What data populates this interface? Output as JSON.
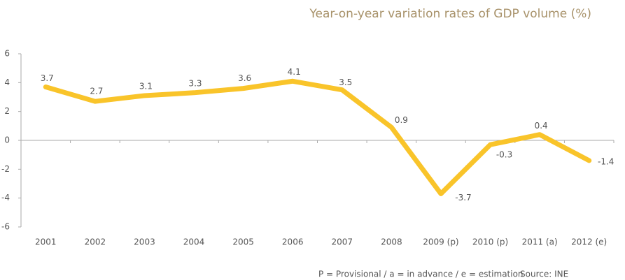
{
  "chart_data": {
    "type": "line",
    "title": "Year-on-year variation rates of GDP volume (%)",
    "categories": [
      "2001",
      "2002",
      "2003",
      "2004",
      "2005",
      "2006",
      "2007",
      "2008",
      "2009 (p)",
      "2010 (p)",
      "2011 (a)",
      "2012 (e)"
    ],
    "series": [
      {
        "name": "GDP volume",
        "color": "#f9c42a",
        "values": [
          3.7,
          2.7,
          3.1,
          3.3,
          3.6,
          4.1,
          3.5,
          0.9,
          -3.7,
          -0.3,
          0.4,
          -1.4
        ]
      }
    ],
    "ylim": [
      -6,
      6
    ],
    "yticks": [
      -6,
      -4,
      -2,
      0,
      2,
      4,
      6
    ],
    "note": "P  = Provisional  / a = in advance / e = estimation",
    "source": "Source: INE"
  }
}
